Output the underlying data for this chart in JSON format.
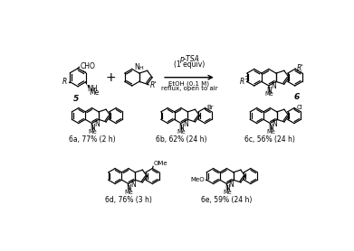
{
  "background_color": "#ffffff",
  "reaction_conditions": {
    "top": "p-TSA",
    "top2": "(1 equiv)",
    "bottom": "EtOH (0.1 M)",
    "bottom2": "reflux, open to air"
  },
  "products": [
    {
      "label": "6a",
      "desc": "77% (2 h)",
      "sub": null,
      "sub_pos": null
    },
    {
      "label": "6b",
      "desc": "62% (24 h)",
      "sub": "Br",
      "sub_pos": "top_right"
    },
    {
      "label": "6c",
      "desc": "56% (24 h)",
      "sub": "Cl",
      "sub_pos": "top_right"
    },
    {
      "label": "6d",
      "desc": "76% (3 h)",
      "sub": "OMe",
      "sub_pos": "top_right_indole"
    },
    {
      "label": "6e",
      "desc": "59% (24 h)",
      "sub": "MeO",
      "sub_pos": "left"
    }
  ]
}
